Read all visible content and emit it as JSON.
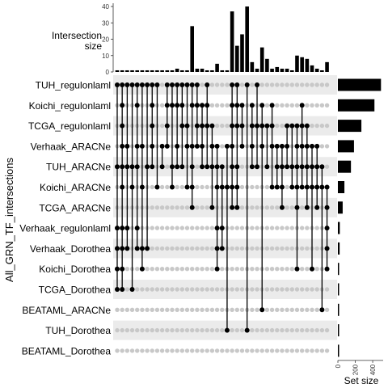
{
  "chart_data": {
    "type": "upset",
    "ylabel": "All_GRN_TF_intersections",
    "intersection_axis": {
      "label_line1": "Intersection",
      "label_line2": "size",
      "ticks": [
        0,
        10,
        20,
        30,
        40
      ],
      "ylim": [
        0,
        42
      ]
    },
    "setsize_axis": {
      "label": "Set size",
      "ticks": [
        0,
        200,
        400
      ],
      "xlim": [
        0,
        520
      ]
    },
    "sets": [
      {
        "name": "TUH_regulonlaml",
        "size": 495
      },
      {
        "name": "Koichi_regulonlaml",
        "size": 420
      },
      {
        "name": "TCGA_regulonlaml",
        "size": 270
      },
      {
        "name": "Verhaak_ARACNe",
        "size": 185
      },
      {
        "name": "TUH_ARACNe",
        "size": 150
      },
      {
        "name": "Koichi_ARACNe",
        "size": 75
      },
      {
        "name": "TCGA_ARACNe",
        "size": 55
      },
      {
        "name": "Verhaak_regulonlaml",
        "size": 22
      },
      {
        "name": "Verhaak_Dorothea",
        "size": 20
      },
      {
        "name": "Koichi_Dorothea",
        "size": 14
      },
      {
        "name": "TCGA_Dorothea",
        "size": 10
      },
      {
        "name": "BEATAML_ARACNe",
        "size": 8
      },
      {
        "name": "TUH_Dorothea",
        "size": 6
      },
      {
        "name": "BEATAML_Dorothea",
        "size": 4
      }
    ],
    "intersections": [
      {
        "size": 1,
        "sets": [
          0,
          4,
          7,
          8,
          9,
          10
        ]
      },
      {
        "size": 1,
        "sets": [
          0,
          1,
          2,
          3,
          4,
          5,
          7,
          8,
          9,
          10
        ]
      },
      {
        "size": 1,
        "sets": [
          0,
          3,
          4,
          7,
          8
        ]
      },
      {
        "size": 1,
        "sets": [
          0,
          4,
          5,
          10
        ]
      },
      {
        "size": 1,
        "sets": [
          0,
          1,
          3,
          4,
          7,
          8
        ]
      },
      {
        "size": 1,
        "sets": [
          0,
          3,
          5,
          8,
          9
        ]
      },
      {
        "size": 1,
        "sets": [
          0,
          4,
          8
        ]
      },
      {
        "size": 1,
        "sets": [
          0,
          1,
          2,
          3,
          4
        ]
      },
      {
        "size": 1,
        "sets": [
          0,
          5
        ]
      },
      {
        "size": 1,
        "sets": [
          3,
          4
        ]
      },
      {
        "size": 1,
        "sets": [
          0,
          1,
          2,
          3
        ]
      },
      {
        "size": 1,
        "sets": [
          0,
          1,
          4,
          5
        ]
      },
      {
        "size": 2,
        "sets": [
          0,
          1,
          3,
          4
        ]
      },
      {
        "size": 1,
        "sets": [
          0,
          1,
          2,
          4
        ]
      },
      {
        "size": 1,
        "sets": [
          0,
          2,
          3,
          5
        ]
      },
      {
        "size": 28,
        "sets": [
          0,
          1,
          3,
          4,
          5,
          6
        ]
      },
      {
        "size": 2,
        "sets": [
          0,
          1,
          2,
          3
        ]
      },
      {
        "size": 2,
        "sets": [
          1,
          2,
          3,
          4
        ]
      },
      {
        "size": 1,
        "sets": [
          0,
          1,
          2,
          4
        ]
      },
      {
        "size": 1,
        "sets": [
          2,
          3,
          4,
          6
        ]
      },
      {
        "size": 5,
        "sets": [
          3,
          4,
          5,
          7,
          8,
          9
        ]
      },
      {
        "size": 1,
        "sets": [
          4,
          5,
          7,
          8
        ]
      },
      {
        "size": 1,
        "sets": [
          3,
          5,
          12
        ]
      },
      {
        "size": 37,
        "sets": [
          0,
          1,
          2,
          3,
          4,
          5,
          6
        ]
      },
      {
        "size": 16,
        "sets": [
          0,
          1,
          2,
          4,
          5,
          6
        ]
      },
      {
        "size": 23,
        "sets": [
          1,
          2,
          3
        ]
      },
      {
        "size": 40,
        "sets": [
          0,
          12
        ]
      },
      {
        "size": 6,
        "sets": [
          1,
          2,
          3,
          4
        ]
      },
      {
        "size": 2,
        "sets": [
          0,
          2,
          4
        ]
      },
      {
        "size": 15,
        "sets": [
          1,
          2,
          3,
          11
        ]
      },
      {
        "size": 8,
        "sets": [
          2,
          4
        ]
      },
      {
        "size": 2,
        "sets": [
          1,
          2,
          3,
          5
        ]
      },
      {
        "size": 3,
        "sets": [
          3,
          4,
          5
        ]
      },
      {
        "size": 2,
        "sets": [
          3,
          4,
          5,
          6
        ]
      },
      {
        "size": 2,
        "sets": [
          2,
          3,
          4
        ]
      },
      {
        "size": 1,
        "sets": [
          2,
          4,
          5
        ]
      },
      {
        "size": 10,
        "sets": [
          2,
          3,
          4,
          5,
          6,
          9
        ]
      },
      {
        "size": 9,
        "sets": [
          1,
          2,
          3,
          4,
          5
        ]
      },
      {
        "size": 8,
        "sets": [
          2,
          3,
          4,
          5,
          6
        ]
      },
      {
        "size": 4,
        "sets": [
          3,
          4,
          5,
          9
        ]
      },
      {
        "size": 2,
        "sets": [
          3,
          4,
          5,
          6
        ]
      },
      {
        "size": 1,
        "sets": [
          4,
          5,
          11
        ]
      },
      {
        "size": 6,
        "sets": [
          5,
          6,
          7,
          8,
          9
        ]
      }
    ]
  }
}
